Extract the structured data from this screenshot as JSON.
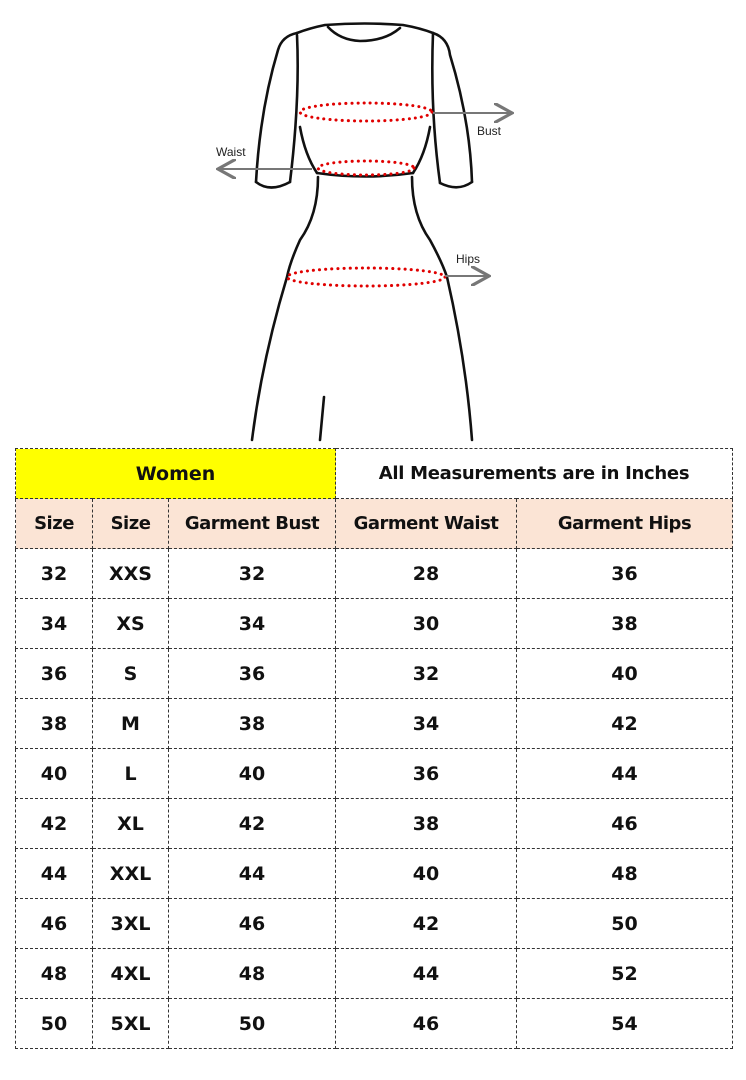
{
  "diagram": {
    "labels": {
      "bust": "Bust",
      "waist": "Waist",
      "hips": "Hips"
    },
    "colors": {
      "outline": "#111111",
      "measure_dots": "#e00000",
      "arrows": "#777777"
    }
  },
  "table": {
    "title": "Women",
    "note": "All Measurements are in Inches",
    "headers": [
      "Size",
      "Size",
      "Garment Bust",
      "Garment Waist",
      "Garment Hips"
    ],
    "rows": [
      [
        "32",
        "XXS",
        "32",
        "28",
        "36"
      ],
      [
        "34",
        "XS",
        "34",
        "30",
        "38"
      ],
      [
        "36",
        "S",
        "36",
        "32",
        "40"
      ],
      [
        "38",
        "M",
        "38",
        "34",
        "42"
      ],
      [
        "40",
        "L",
        "40",
        "36",
        "44"
      ],
      [
        "42",
        "XL",
        "42",
        "38",
        "46"
      ],
      [
        "44",
        "XXL",
        "44",
        "40",
        "48"
      ],
      [
        "46",
        "3XL",
        "46",
        "42",
        "50"
      ],
      [
        "48",
        "4XL",
        "48",
        "44",
        "52"
      ],
      [
        "50",
        "5XL",
        "50",
        "46",
        "54"
      ]
    ],
    "colors": {
      "title_bg": "#ffff00",
      "header_bg": "#fbe4d5"
    }
  }
}
